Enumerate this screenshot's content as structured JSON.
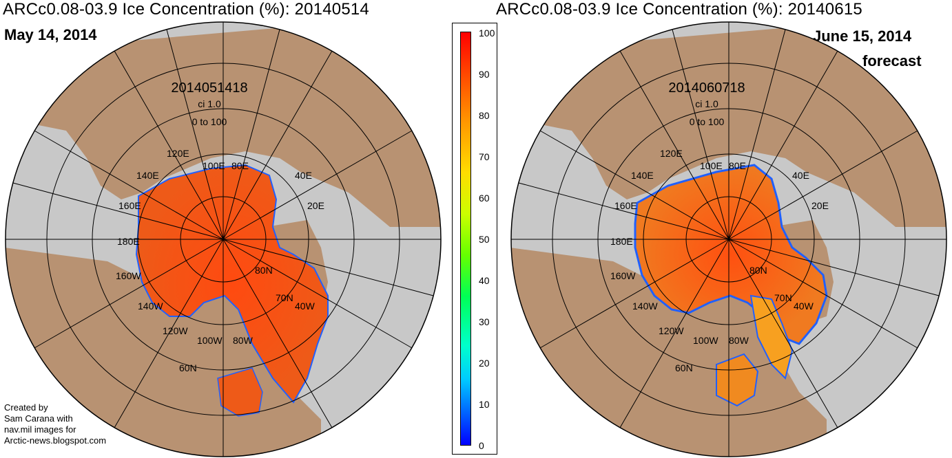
{
  "left": {
    "title": "ARCc0.08-03.9 Ice Concentration (%): 20140514",
    "date_label": "May 14, 2014",
    "stamp": "2014051418",
    "ci": "ci 1.0",
    "range": "0 to 100",
    "lon_labels": [
      "120E",
      "100E",
      "80E",
      "40E",
      "140E",
      "160E",
      "20E",
      "180E",
      "160W",
      "140W",
      "120W",
      "100W",
      "80W",
      "40W"
    ],
    "lat_labels": [
      "80N",
      "70N",
      "60N"
    ]
  },
  "right": {
    "title": "ARCc0.08-03.9 Ice Concentration (%): 20140615",
    "date_label": "June 15, 2014",
    "forecast_label": "forecast",
    "stamp": "2014060718",
    "ci": "ci 1.0",
    "range": "0 to 100",
    "lon_labels": [
      "120E",
      "100E",
      "80E",
      "40E",
      "140E",
      "160E",
      "20E",
      "180E",
      "160W",
      "140W",
      "120W",
      "100W",
      "80W",
      "40W"
    ],
    "lat_labels": [
      "80N",
      "70N",
      "60N"
    ]
  },
  "colorbar": {
    "ticks": [
      "100",
      "90",
      "80",
      "70",
      "60",
      "50",
      "40",
      "30",
      "20",
      "10",
      "0"
    ],
    "colors": {
      "low": "#0000ff",
      "mid": "#00ff55",
      "high": "#ff0000"
    }
  },
  "credit": {
    "lines": [
      "Created by",
      "Sam Carana with",
      "nav.mil images for",
      "Arctic-news.blogspot.com"
    ]
  },
  "palette": {
    "ocean": "#c8c8c8",
    "land": "#b89272",
    "ice": "#f06a1c",
    "ice_edge": "#2060ff"
  }
}
